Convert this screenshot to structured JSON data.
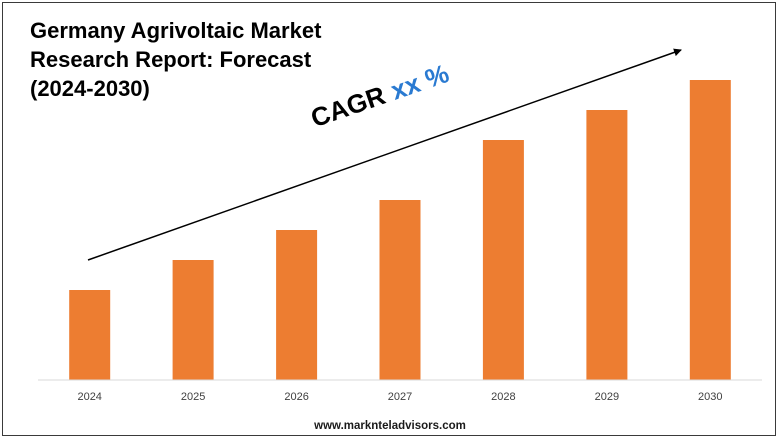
{
  "chart_data": {
    "type": "bar",
    "title_lines": [
      "Germany Agrivoltaic Market",
      "Research Report: Forecast",
      "(2024-2030)"
    ],
    "categories": [
      "2024",
      "2025",
      "2026",
      "2027",
      "2028",
      "2029",
      "2030"
    ],
    "values": [
      30,
      40,
      50,
      60,
      80,
      90,
      100
    ],
    "ylim": [
      0,
      100
    ],
    "xlabel": "",
    "ylabel": "",
    "bar_color": "#ed7d31",
    "annotation": {
      "label": "CAGR",
      "value": "xx %",
      "value_color": "#2a7ad1"
    }
  },
  "footer": {
    "url": "www.marknteladvisors.com"
  }
}
